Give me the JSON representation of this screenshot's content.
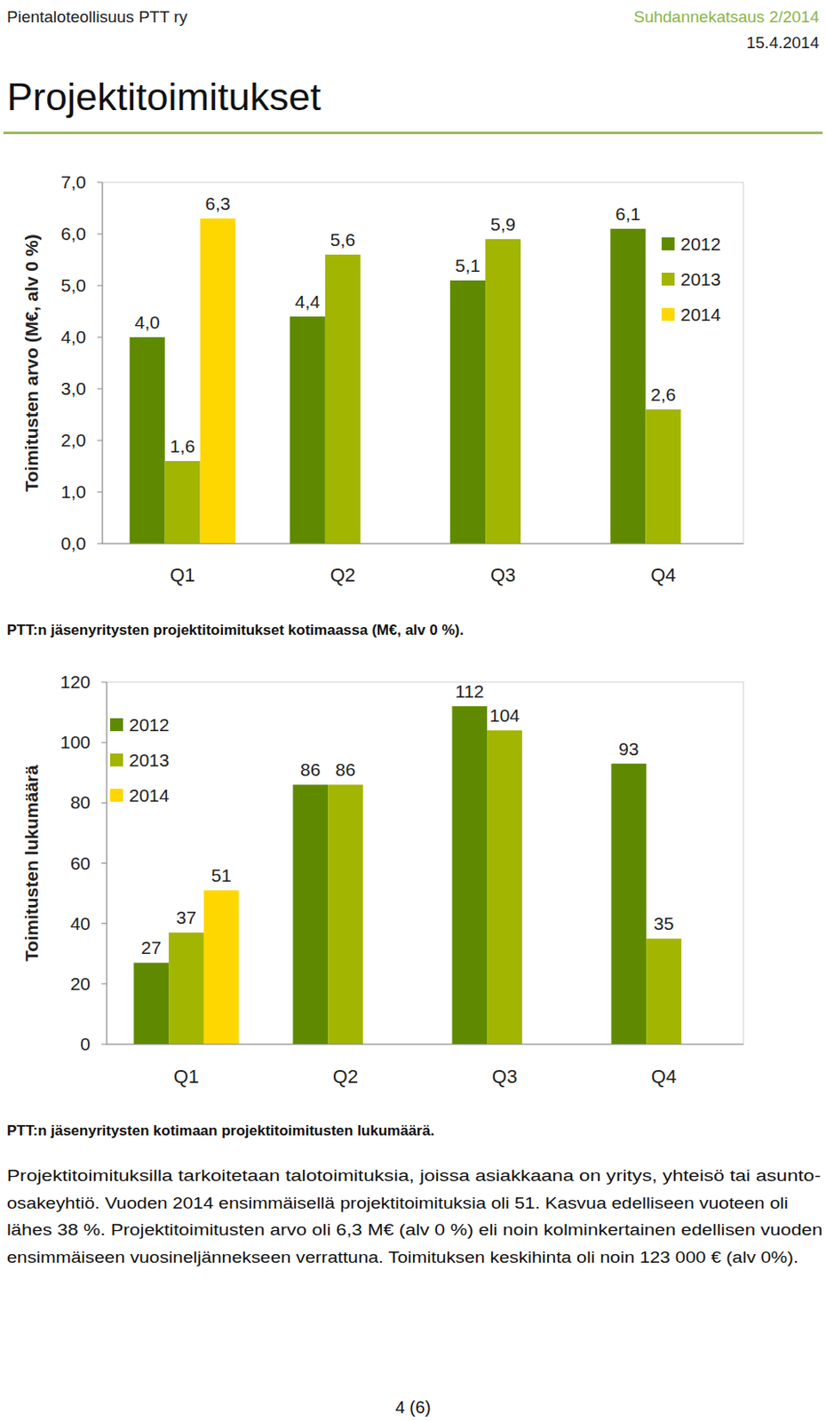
{
  "header": {
    "left": "Pientaloteollisuus PTT ry",
    "right": "Suhdannekatsaus 2/2014",
    "date": "15.4.2014"
  },
  "heading": "Projektitoimitukset",
  "chart_data": [
    {
      "type": "bar",
      "title": "PTT:n jäsenyritysten projektitoimitukset kotimaassa (M€, alv 0 %).",
      "ylabel": "Toimitusten arvo (M€, alv 0 %)",
      "categories": [
        "Q1",
        "Q2",
        "Q3",
        "Q4"
      ],
      "series": [
        {
          "name": "2012",
          "color": "#5f8a00",
          "values": [
            4.0,
            4.4,
            5.1,
            6.1
          ],
          "value_labels": [
            "4,0",
            "4,4",
            "5,1",
            "6,1"
          ]
        },
        {
          "name": "2013",
          "color": "#a2b500",
          "values": [
            1.6,
            5.6,
            5.9,
            2.6
          ],
          "value_labels": [
            "1,6",
            "5,6",
            "5,9",
            "2,6"
          ]
        },
        {
          "name": "2014",
          "color": "#ffd700",
          "values": [
            6.3,
            null,
            null,
            null
          ],
          "value_labels": [
            "6,3",
            null,
            null,
            null
          ]
        }
      ],
      "ylim": [
        0,
        7
      ],
      "yticks": [
        {
          "value": 0,
          "label": "0,0"
        },
        {
          "value": 1,
          "label": "1,0"
        },
        {
          "value": 2,
          "label": "2,0"
        },
        {
          "value": 3,
          "label": "3,0"
        },
        {
          "value": 4,
          "label": "4,0"
        },
        {
          "value": 5,
          "label": "5,0"
        },
        {
          "value": 6,
          "label": "6,0"
        },
        {
          "value": 7,
          "label": "7,0"
        }
      ],
      "data_labels": true,
      "legend": "upper right",
      "grid": false
    },
    {
      "type": "bar",
      "title": "PTT:n jäsenyritysten kotimaan projektitoimitusten lukumäärä.",
      "ylabel": "Toimitusten lukumäärä",
      "categories": [
        "Q1",
        "Q2",
        "Q3",
        "Q4"
      ],
      "series": [
        {
          "name": "2012",
          "color": "#5f8a00",
          "values": [
            27,
            86,
            112,
            93
          ]
        },
        {
          "name": "2013",
          "color": "#a2b500",
          "values": [
            37,
            86,
            104,
            35
          ]
        },
        {
          "name": "2014",
          "color": "#ffd700",
          "values": [
            51,
            null,
            null,
            null
          ]
        }
      ],
      "ylim": [
        0,
        120
      ],
      "yticks": [
        0,
        20,
        40,
        60,
        80,
        100,
        120
      ],
      "data_labels": true,
      "legend": "upper left",
      "grid": false
    }
  ],
  "paragraph": [
    "Projektitoimituksilla tarkoitetaan talotoimituksia, joissa asiakkaana on yritys, yhteisö tai asunto-",
    "osakeyhtiö. Vuoden 2014 ensimmäisellä projektitoimituksia oli 51.  Kasvua edelliseen vuoteen oli",
    "lähes 38 %. Projektitoimitusten arvo oli 6,3 M€ (alv 0 %) eli noin kolminkertainen edellisen vuoden",
    "ensimmäiseen vuosineljännekseen verrattuna.  Toimituksen keskihinta oli noin 123 000 € (alv 0%)."
  ],
  "page": "4 (6)"
}
